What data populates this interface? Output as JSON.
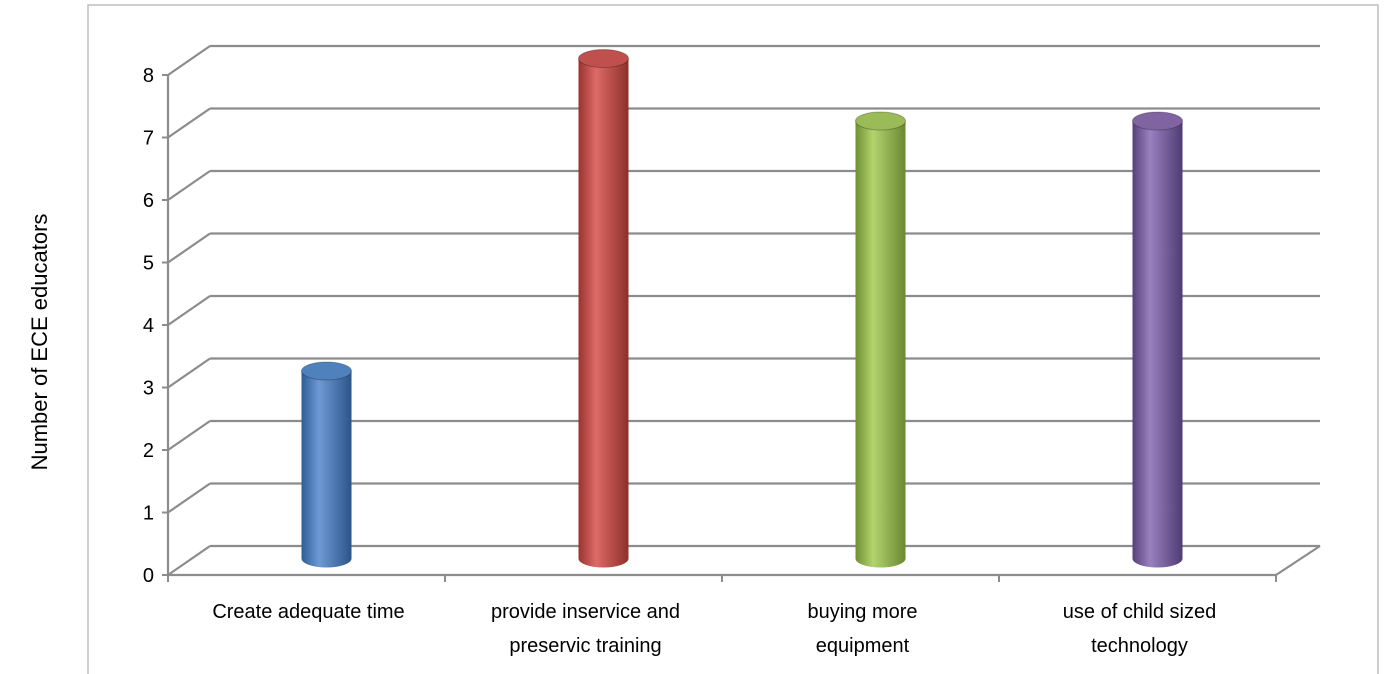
{
  "chart_data": {
    "type": "bar",
    "style": "3d-cylinder",
    "categories": [
      [
        "Create adequate time"
      ],
      [
        "provide inservice and",
        "preservic training"
      ],
      [
        "buying more",
        "equipment"
      ],
      [
        "use of child sized",
        "technology"
      ]
    ],
    "values": [
      3,
      8,
      7,
      7
    ],
    "bar_colors": [
      "#4F81BD",
      "#C0504D",
      "#9BBB59",
      "#8064A2"
    ],
    "ylabel": "Number of ECE educators",
    "ylim": [
      0,
      8
    ],
    "yticks": [
      "0",
      "1",
      "2",
      "3",
      "4",
      "5",
      "6",
      "7",
      "8"
    ],
    "grid": true,
    "legend": "none"
  }
}
